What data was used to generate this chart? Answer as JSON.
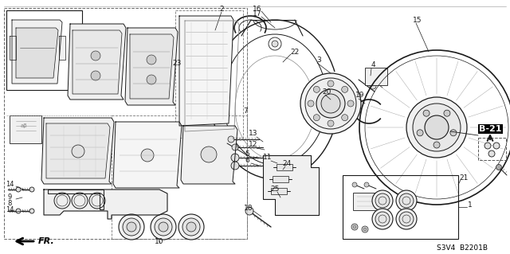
{
  "bg_color": "#ffffff",
  "line_color": "#1a1a1a",
  "code": "S3V4  B2201B",
  "ref_label": "B-21",
  "arrow_label": "FR.",
  "lw": 0.8
}
